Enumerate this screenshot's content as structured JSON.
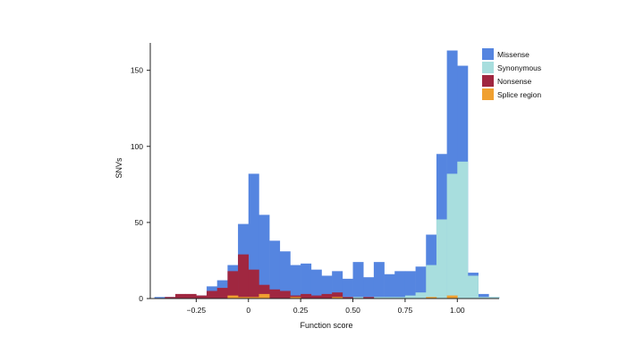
{
  "chart_data": {
    "type": "bar",
    "subtype": "overlaid-histogram",
    "title": "",
    "xlabel": "Function score",
    "ylabel": "SNVs",
    "xlim": [
      -0.47,
      1.2
    ],
    "ylim": [
      0,
      168
    ],
    "bin_width": 0.05,
    "bin_starts": [
      -0.45,
      -0.4,
      -0.35,
      -0.3,
      -0.25,
      -0.2,
      -0.15,
      -0.1,
      -0.05,
      0.0,
      0.05,
      0.1,
      0.15,
      0.2,
      0.25,
      0.3,
      0.35,
      0.4,
      0.45,
      0.5,
      0.55,
      0.6,
      0.65,
      0.7,
      0.75,
      0.8,
      0.85,
      0.9,
      0.95,
      1.0,
      1.05,
      1.1,
      1.15
    ],
    "x_ticks": [
      {
        "value": -0.25,
        "label": "−0.25"
      },
      {
        "value": 0,
        "label": "0"
      },
      {
        "value": 0.25,
        "label": "0.25"
      },
      {
        "value": 0.5,
        "label": "0.50"
      },
      {
        "value": 0.75,
        "label": "0.75"
      },
      {
        "value": 1.0,
        "label": "1.00"
      }
    ],
    "y_ticks": [
      {
        "value": 0,
        "label": "0"
      },
      {
        "value": 50,
        "label": "50"
      },
      {
        "value": 100,
        "label": "100"
      },
      {
        "value": 150,
        "label": "150"
      }
    ],
    "series": [
      {
        "name": "Missense",
        "color": "#5585e0",
        "values": [
          1,
          1,
          1,
          1,
          2,
          8,
          12,
          22,
          49,
          82,
          55,
          38,
          31,
          22,
          23,
          19,
          15,
          18,
          13,
          24,
          14,
          24,
          16,
          18,
          18,
          21,
          42,
          95,
          163,
          153,
          17,
          3,
          1
        ]
      },
      {
        "name": "Synonymous",
        "color": "#a8dede",
        "values": [
          0,
          0,
          0,
          0,
          0,
          0,
          0,
          0,
          0,
          0,
          1,
          2,
          1,
          1,
          1,
          1,
          1,
          0,
          1,
          1,
          1,
          1,
          1,
          1,
          2,
          4,
          22,
          52,
          82,
          90,
          15,
          1,
          1
        ]
      },
      {
        "name": "Nonsense",
        "color": "#a02740",
        "values": [
          0,
          1,
          3,
          3,
          2,
          5,
          7,
          18,
          29,
          19,
          9,
          6,
          5,
          2,
          3,
          2,
          3,
          4,
          1,
          0,
          1,
          0,
          0,
          0,
          0,
          0,
          0,
          0,
          0,
          0,
          0,
          0,
          0
        ]
      },
      {
        "name": "Splice region",
        "color": "#f0a030",
        "values": [
          0,
          0,
          0,
          0,
          0,
          0,
          0,
          2,
          1,
          1,
          3,
          0,
          0,
          1,
          0,
          0,
          0,
          1,
          0,
          0,
          0,
          0,
          0,
          0,
          0,
          0,
          1,
          0,
          2,
          0,
          0,
          0,
          0
        ]
      }
    ],
    "legend": {
      "position": "top-right"
    },
    "grid": false
  }
}
